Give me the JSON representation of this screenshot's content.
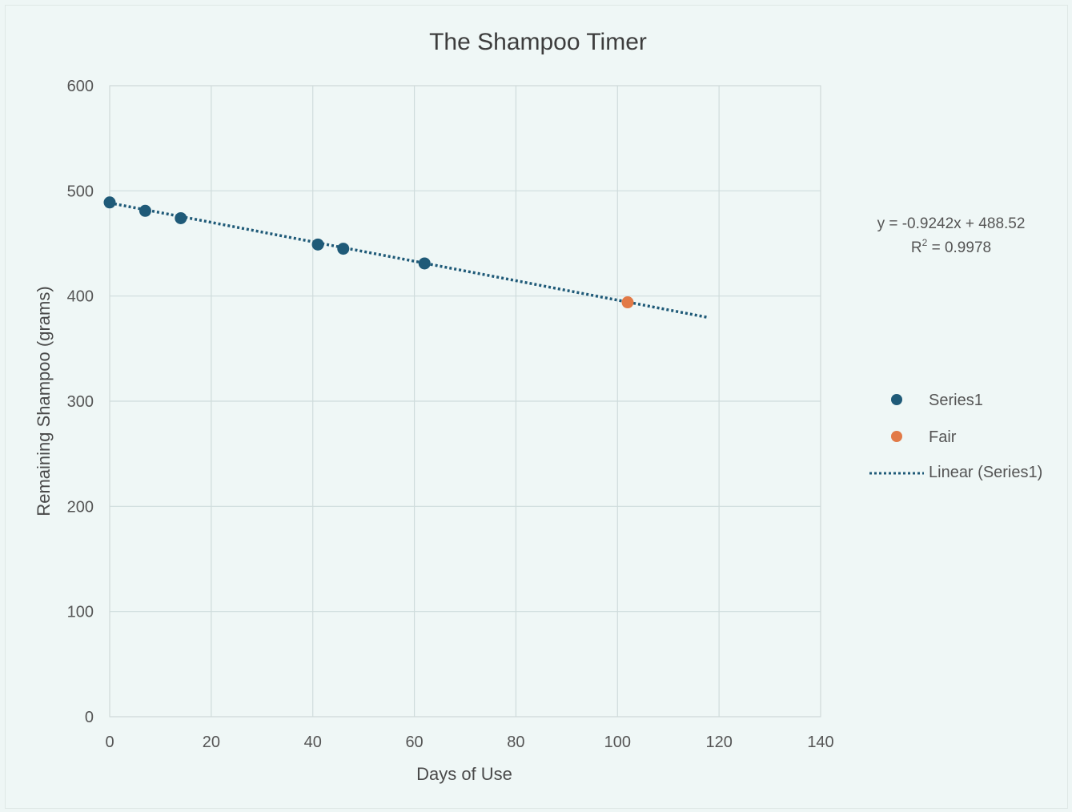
{
  "chart_data": {
    "type": "scatter",
    "title": "The Shampoo Timer",
    "xlabel": "Days of Use",
    "ylabel": "Remaining Shampoo (grams)",
    "xlim": [
      0,
      140
    ],
    "ylim": [
      0,
      600
    ],
    "x_ticks": [
      0,
      20,
      40,
      60,
      80,
      100,
      120,
      140
    ],
    "y_ticks": [
      0,
      100,
      200,
      300,
      400,
      500,
      600
    ],
    "grid": true,
    "legend_position": "right",
    "series": [
      {
        "name": "Series1",
        "color": "#1f5a78",
        "points": [
          {
            "x": 0,
            "y": 489
          },
          {
            "x": 7,
            "y": 481
          },
          {
            "x": 14,
            "y": 474
          },
          {
            "x": 41,
            "y": 449
          },
          {
            "x": 46,
            "y": 445
          },
          {
            "x": 62,
            "y": 431
          }
        ]
      },
      {
        "name": "Fair",
        "color": "#e27a47",
        "points": [
          {
            "x": 102,
            "y": 394
          }
        ]
      }
    ],
    "trendline": {
      "name": "Linear (Series1)",
      "color": "#1f5a78",
      "slope": -0.9242,
      "intercept": 488.52,
      "x_range": [
        0,
        118
      ],
      "equation_label": "y = -0.9242x + 488.52",
      "r2_prefix": "R",
      "r2_sup": "2",
      "r2_suffix": " = 0.9978"
    }
  }
}
